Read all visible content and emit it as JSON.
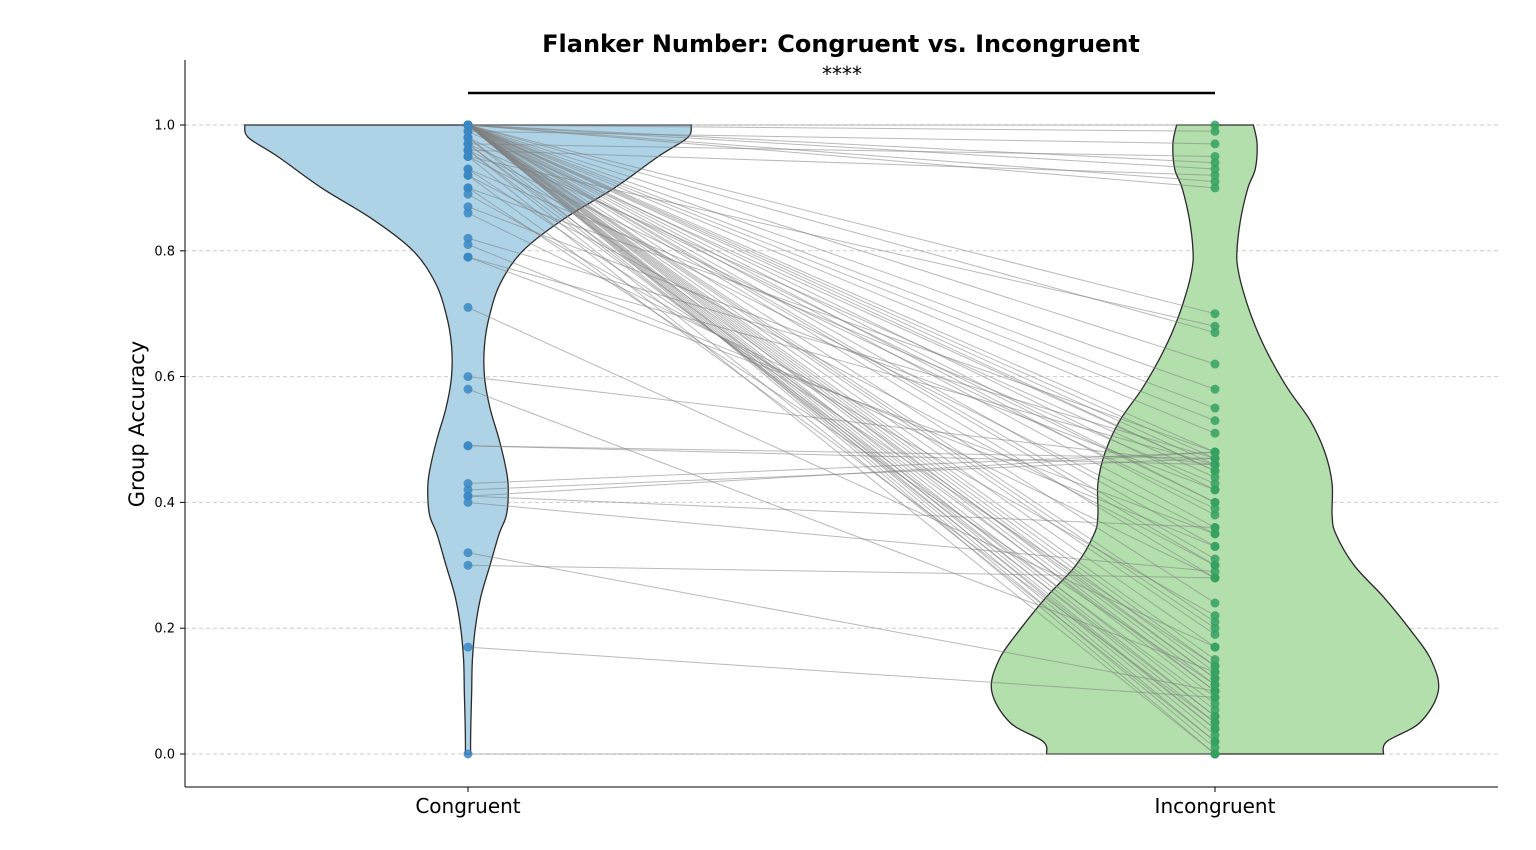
{
  "chart_data": {
    "type": "violin",
    "title": "Flanker Number: Congruent vs. Incongruent",
    "xlabel": "",
    "ylabel": "Group Accuracy",
    "categories": [
      "Congruent",
      "Incongruent"
    ],
    "yticks": [
      "0.0",
      "0.2",
      "0.4",
      "0.6",
      "0.8",
      "1.0"
    ],
    "ylim": [
      -0.05,
      1.1
    ],
    "grid": "horizontal dashed",
    "significance": {
      "label": "****",
      "between": [
        "Congruent",
        "Incongruent"
      ]
    },
    "colors": {
      "congruent_violin": "#aed3e7",
      "incongruent_violin": "#b2dfac",
      "congruent_points": "#3a87c2",
      "incongruent_points": "#35a160",
      "pair_lines": "#808080"
    },
    "violins": [
      {
        "name": "Congruent",
        "density_y": [
          1.0,
          0.98,
          0.95,
          0.9,
          0.85,
          0.8,
          0.75,
          0.7,
          0.65,
          0.6,
          0.55,
          0.5,
          0.45,
          0.42,
          0.38,
          0.35,
          0.3,
          0.25,
          0.2,
          0.15,
          0.1,
          0.05,
          0.02,
          0.0
        ],
        "half_width": [
          0.61,
          0.6,
          0.52,
          0.4,
          0.26,
          0.15,
          0.09,
          0.06,
          0.045,
          0.045,
          0.06,
          0.085,
          0.105,
          0.11,
          0.105,
          0.085,
          0.06,
          0.035,
          0.02,
          0.012,
          0.01,
          0.008,
          0.007,
          0.007
        ]
      },
      {
        "name": "Incongruent",
        "density_y": [
          1.0,
          0.97,
          0.93,
          0.9,
          0.85,
          0.8,
          0.77,
          0.73,
          0.68,
          0.63,
          0.58,
          0.53,
          0.48,
          0.43,
          0.38,
          0.35,
          0.3,
          0.25,
          0.2,
          0.15,
          0.1,
          0.05,
          0.02,
          0.0
        ],
        "half_width": [
          0.105,
          0.115,
          0.11,
          0.09,
          0.07,
          0.06,
          0.063,
          0.08,
          0.11,
          0.15,
          0.2,
          0.26,
          0.3,
          0.32,
          0.32,
          0.33,
          0.38,
          0.46,
          0.53,
          0.59,
          0.61,
          0.56,
          0.47,
          0.46
        ]
      }
    ],
    "pairs": [
      [
        1.0,
        0.99
      ],
      [
        1.0,
        1.0
      ],
      [
        1.0,
        0.94
      ],
      [
        1.0,
        0.91
      ],
      [
        1.0,
        0.9
      ],
      [
        1.0,
        0.93
      ],
      [
        1.0,
        0.7
      ],
      [
        1.0,
        0.67
      ],
      [
        1.0,
        0.62
      ],
      [
        1.0,
        0.58
      ],
      [
        1.0,
        0.55
      ],
      [
        1.0,
        0.53
      ],
      [
        1.0,
        0.51
      ],
      [
        1.0,
        0.48
      ],
      [
        1.0,
        0.47
      ],
      [
        1.0,
        0.46
      ],
      [
        1.0,
        0.45
      ],
      [
        1.0,
        0.42
      ],
      [
        1.0,
        0.4
      ],
      [
        1.0,
        0.38
      ],
      [
        1.0,
        0.36
      ],
      [
        1.0,
        0.33
      ],
      [
        1.0,
        0.31
      ],
      [
        1.0,
        0.3
      ],
      [
        1.0,
        0.28
      ],
      [
        1.0,
        0.24
      ],
      [
        1.0,
        0.21
      ],
      [
        1.0,
        0.2
      ],
      [
        1.0,
        0.19
      ],
      [
        1.0,
        0.17
      ],
      [
        1.0,
        0.15
      ],
      [
        1.0,
        0.14
      ],
      [
        1.0,
        0.13
      ],
      [
        1.0,
        0.12
      ],
      [
        1.0,
        0.11
      ],
      [
        1.0,
        0.1
      ],
      [
        1.0,
        0.09
      ],
      [
        1.0,
        0.07
      ],
      [
        1.0,
        0.06
      ],
      [
        1.0,
        0.05
      ],
      [
        1.0,
        0.04
      ],
      [
        1.0,
        0.03
      ],
      [
        1.0,
        0.02
      ],
      [
        1.0,
        0.01
      ],
      [
        1.0,
        0.0
      ],
      [
        0.99,
        0.97
      ],
      [
        0.99,
        0.45
      ],
      [
        0.98,
        0.4
      ],
      [
        0.98,
        0.12
      ],
      [
        0.98,
        0.04
      ],
      [
        0.97,
        0.95
      ],
      [
        0.97,
        0.44
      ],
      [
        0.97,
        0.1
      ],
      [
        0.97,
        0.06
      ],
      [
        0.96,
        0.92
      ],
      [
        0.96,
        0.39
      ],
      [
        0.96,
        0.08
      ],
      [
        0.96,
        0.02
      ],
      [
        0.95,
        0.68
      ],
      [
        0.95,
        0.35
      ],
      [
        0.95,
        0.0
      ],
      [
        0.93,
        0.43
      ],
      [
        0.93,
        0.14
      ],
      [
        0.92,
        0.3
      ],
      [
        0.92,
        0.05
      ],
      [
        0.9,
        0.48
      ],
      [
        0.9,
        0.11
      ],
      [
        0.89,
        0.22
      ],
      [
        0.87,
        0.42
      ],
      [
        0.86,
        0.28
      ],
      [
        0.82,
        0.47
      ],
      [
        0.81,
        0.33
      ],
      [
        0.79,
        0.46
      ],
      [
        0.79,
        0.35
      ],
      [
        0.71,
        0.17
      ],
      [
        0.6,
        0.46
      ],
      [
        0.58,
        0.13
      ],
      [
        0.49,
        0.47
      ],
      [
        0.49,
        0.46
      ],
      [
        0.43,
        0.48
      ],
      [
        0.42,
        0.47
      ],
      [
        0.41,
        0.48
      ],
      [
        0.41,
        0.36
      ],
      [
        0.4,
        0.29
      ],
      [
        0.32,
        0.1
      ],
      [
        0.3,
        0.28
      ],
      [
        0.17,
        0.09
      ],
      [
        0.0,
        0.0
      ]
    ]
  }
}
